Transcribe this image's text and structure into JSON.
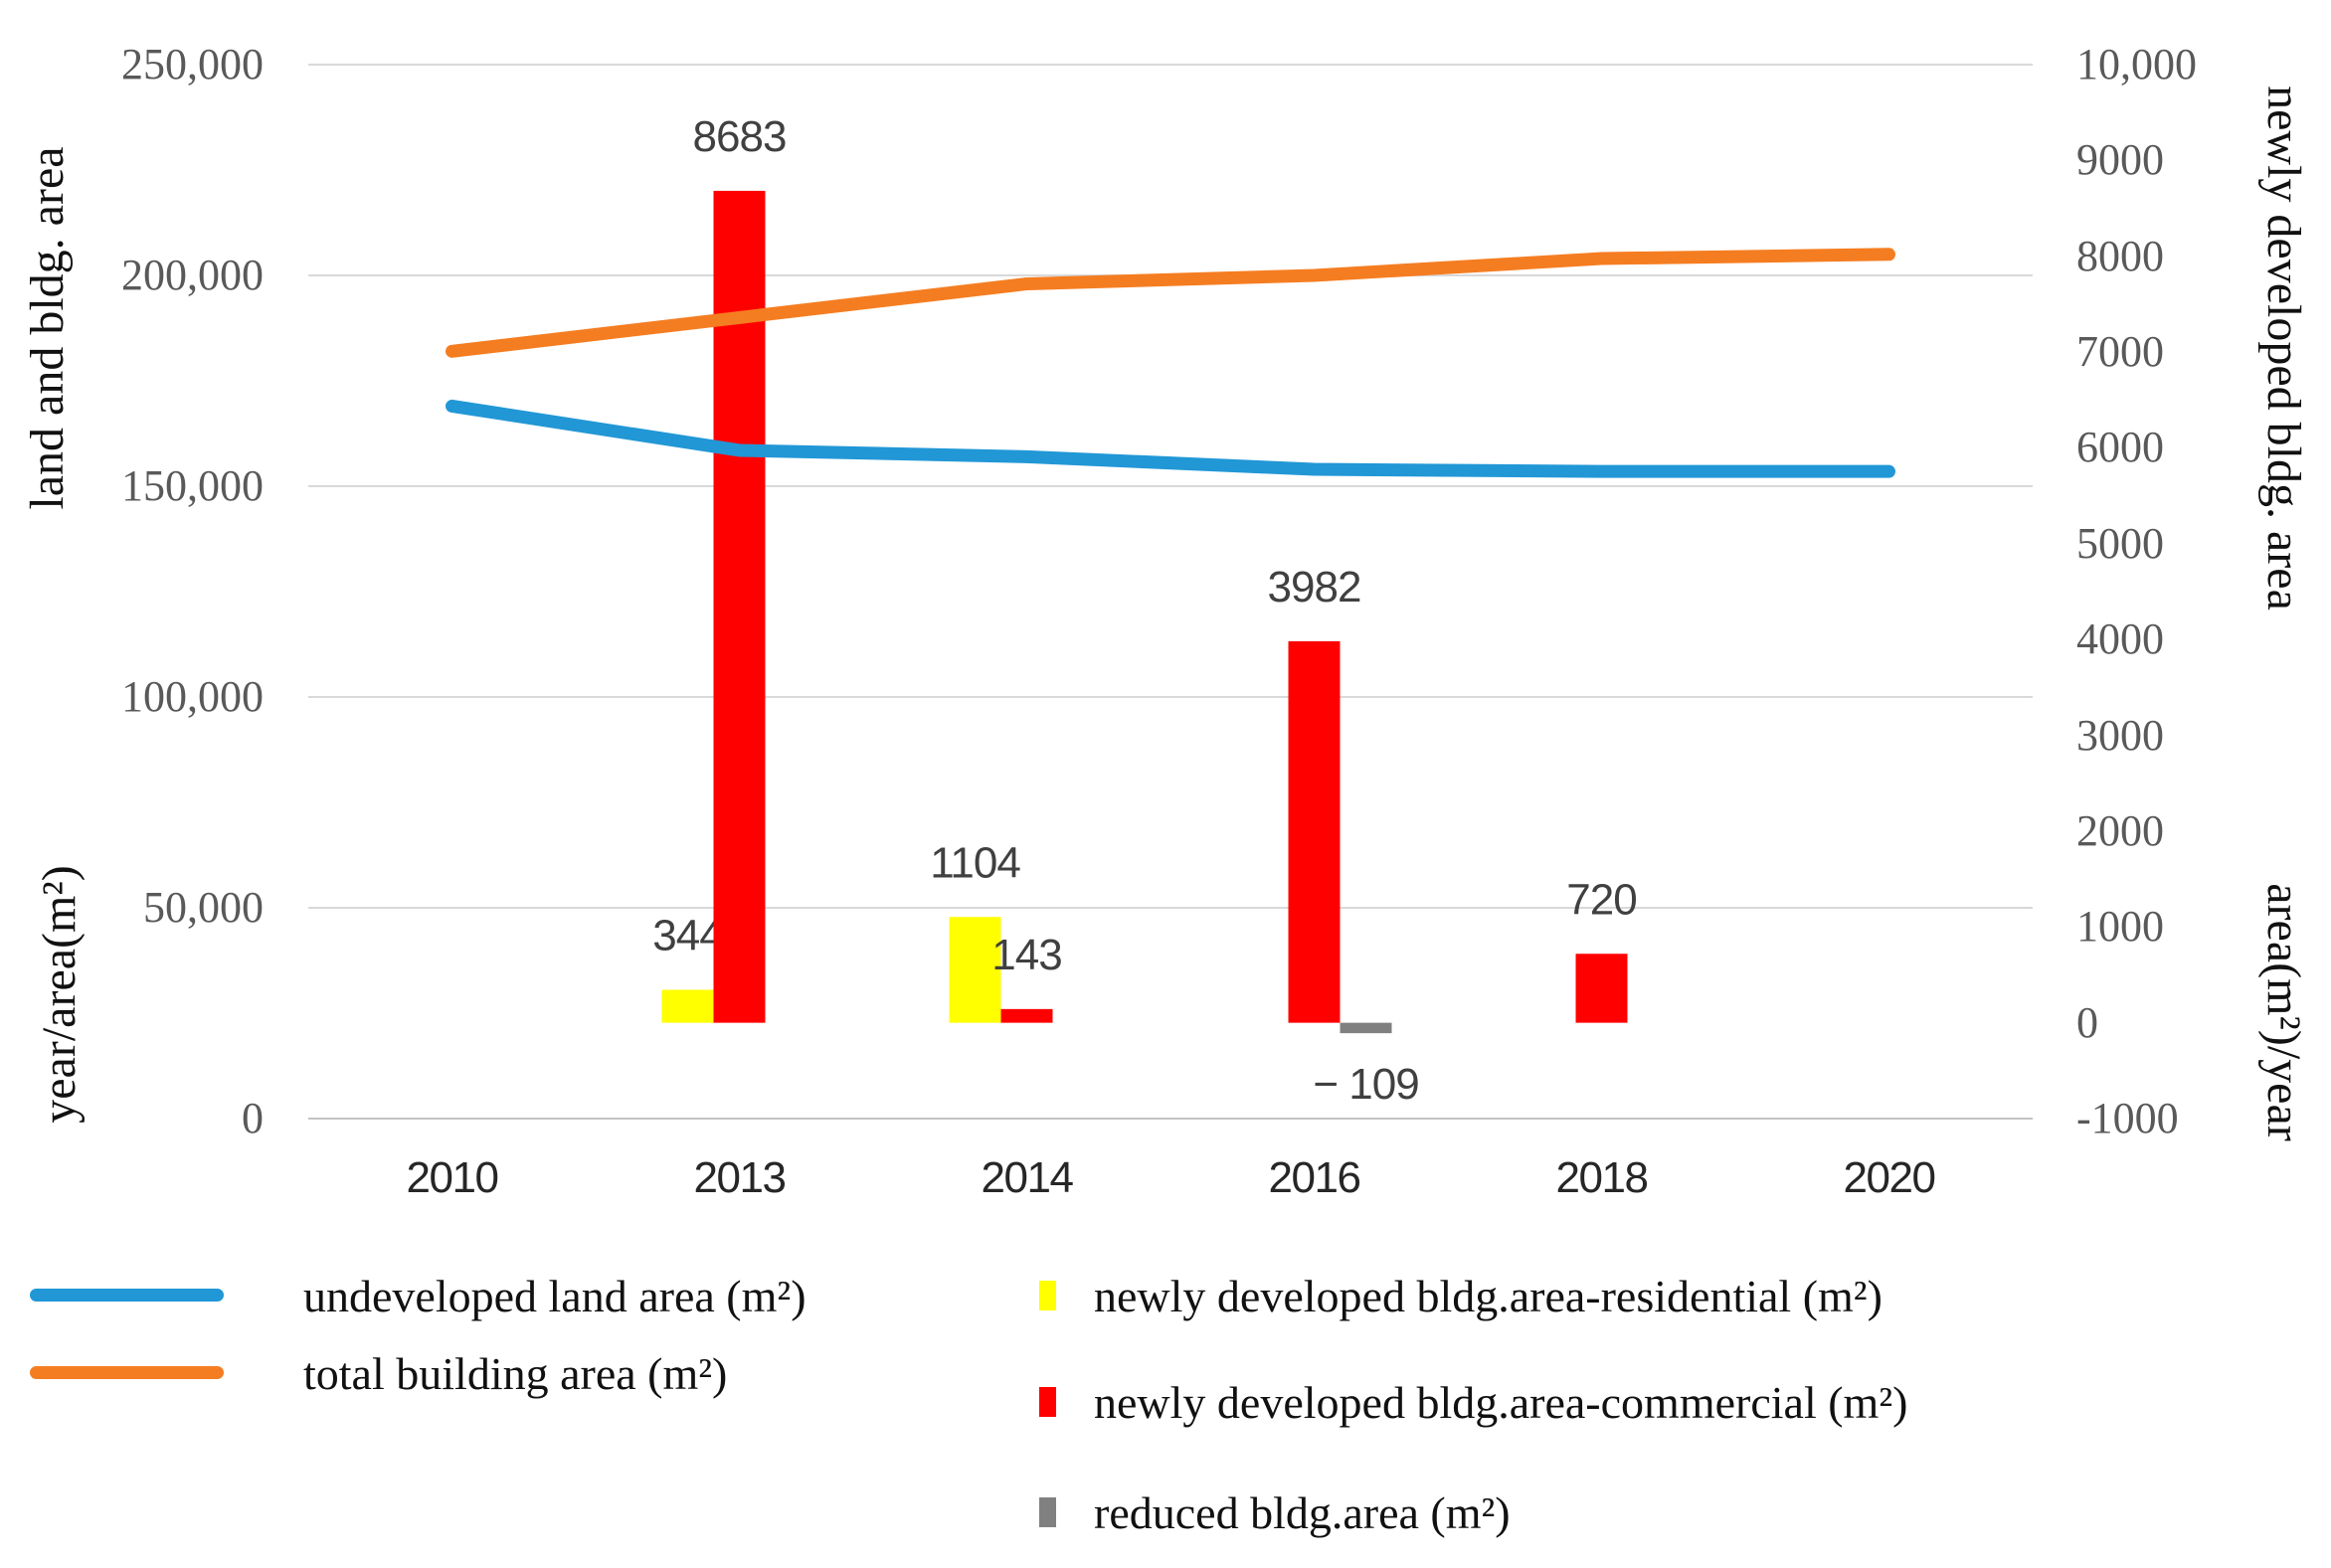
{
  "figure": {
    "left_axis_title_top": "land and bldg. area",
    "left_axis_title_bottom": "year/area(m²)",
    "right_axis_title_top": "newly developed bldg. area",
    "right_axis_title_bottom": "area(m²)/year"
  },
  "chart_data": {
    "type": "combo-line-bar",
    "categories": [
      "2010",
      "2013",
      "2014",
      "2016",
      "2018",
      "2020"
    ],
    "grid": true,
    "legend_position": "bottom",
    "left_axis": {
      "min": 0,
      "max": 250000,
      "ticks": [
        {
          "label": "250,000",
          "value": 250000
        },
        {
          "label": "200,000",
          "value": 200000
        },
        {
          "label": "150,000",
          "value": 150000
        },
        {
          "label": "100,000",
          "value": 100000
        },
        {
          "label": "50,000",
          "value": 50000
        },
        {
          "label": "0",
          "value": 0
        }
      ]
    },
    "right_axis": {
      "min": -1000,
      "max": 10000,
      "ticks": [
        {
          "label": "10,000",
          "value": 10000
        },
        {
          "label": "9000",
          "value": 9000
        },
        {
          "label": "8000",
          "value": 8000
        },
        {
          "label": "7000",
          "value": 7000
        },
        {
          "label": "6000",
          "value": 6000
        },
        {
          "label": "5000",
          "value": 5000
        },
        {
          "label": "4000",
          "value": 4000
        },
        {
          "label": "3000",
          "value": 3000
        },
        {
          "label": "2000",
          "value": 2000
        },
        {
          "label": "1000",
          "value": 1000
        },
        {
          "label": "0",
          "value": 0
        },
        {
          "label": "-1000",
          "value": -1000
        }
      ]
    },
    "line_series": [
      {
        "key": "undeveloped-land",
        "name": "undeveloped land area (m²)",
        "color": "#2197D6",
        "values": [
          169000,
          158500,
          157000,
          154000,
          153500,
          153500
        ]
      },
      {
        "key": "total-building",
        "name": "total building area (m²)",
        "color": "#F57D21",
        "values": [
          182000,
          190000,
          198000,
          200000,
          204000,
          205000
        ]
      }
    ],
    "bar_series": [
      {
        "key": "residential",
        "name": "newly developed bldg.area-residential (m²)",
        "color": "#FFFF00",
        "values": [
          null,
          344,
          1104,
          null,
          null,
          null
        ],
        "labels": [
          null,
          "344",
          "1104",
          null,
          null,
          null
        ]
      },
      {
        "key": "commercial",
        "name": "newly developed bldg.area-commercial (m²)",
        "color": "#FF0000",
        "values": [
          null,
          8683,
          143,
          3982,
          720,
          null
        ],
        "labels": [
          null,
          "8683",
          "143",
          "3982",
          "720",
          null
        ]
      },
      {
        "key": "reduced",
        "name": "reduced bldg.area (m²)",
        "color": "#808080",
        "values": [
          null,
          null,
          null,
          -109,
          null,
          null
        ],
        "labels": [
          null,
          null,
          null,
          "− 109",
          null,
          null
        ]
      }
    ],
    "grid_color": "#D9D9D9",
    "axis_line_color": "#C3C3C3",
    "data_label_color": "#404040"
  }
}
